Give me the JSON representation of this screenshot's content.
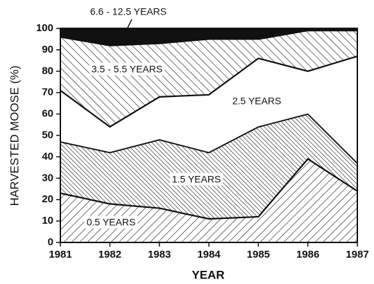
{
  "chart_data": {
    "type": "stacked_area",
    "x_label": "YEAR",
    "y_label": "HARVESTED MOOSE (%)",
    "x": [
      1981,
      1982,
      1983,
      1984,
      1985,
      1986,
      1987
    ],
    "xlim": [
      1981,
      1987
    ],
    "xticks": [
      1981,
      1982,
      1983,
      1984,
      1985,
      1986,
      1987
    ],
    "ylim": [
      0,
      100
    ],
    "yticks": [
      0,
      10,
      20,
      30,
      40,
      50,
      60,
      70,
      80,
      90,
      100
    ],
    "series": [
      {
        "name": "0.5 YEARS",
        "color": "#111111",
        "pattern": "fwd",
        "values": [
          23,
          18,
          16,
          11,
          12,
          39,
          24
        ]
      },
      {
        "name": "1.5 YEARS",
        "color": "#111111",
        "pattern": "backdense",
        "values": [
          24,
          24,
          32,
          31,
          42,
          21,
          13
        ]
      },
      {
        "name": "2.5 YEARS",
        "color": "#111111",
        "pattern": "none",
        "values": [
          24,
          12,
          20,
          27,
          32,
          20,
          50
        ]
      },
      {
        "name": "3.5 - 5.5 YEARS",
        "color": "#111111",
        "pattern": "back",
        "values": [
          25,
          38,
          25,
          26,
          9,
          19,
          12
        ]
      },
      {
        "name": "6.6 - 12.5 YEARS",
        "color": "#111111",
        "pattern": "solid",
        "values": [
          4,
          8,
          7,
          5,
          5,
          1,
          1
        ]
      }
    ]
  }
}
